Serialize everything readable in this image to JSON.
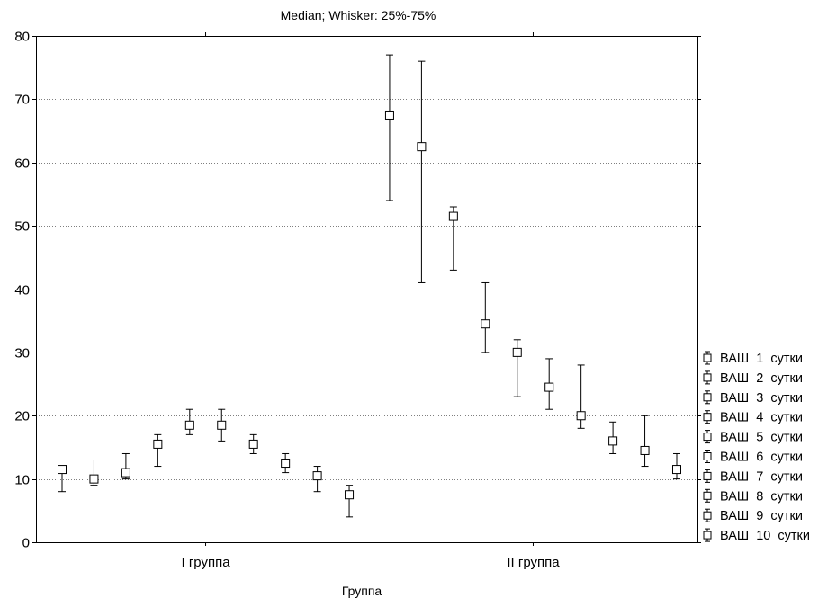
{
  "chart_data": {
    "type": "scatter",
    "title": "Median; Whisker: 25%-75%",
    "xlabel": "Группа",
    "ylabel": "",
    "ylim": [
      0,
      80
    ],
    "yticks": [
      0,
      10,
      20,
      30,
      40,
      50,
      60,
      70,
      80
    ],
    "grid": true,
    "legend_position": "right",
    "categories": [
      "I группа",
      "II группа"
    ],
    "series": [
      {
        "name": "ВАШ  1  сутки",
        "values": [
          {
            "median": 11.5,
            "q25": 8,
            "q75": 11.5
          },
          {
            "median": 67.5,
            "q25": 54,
            "q75": 77
          }
        ]
      },
      {
        "name": "ВАШ  2  сутки",
        "values": [
          {
            "median": 10,
            "q25": 9,
            "q75": 13
          },
          {
            "median": 62.5,
            "q25": 41,
            "q75": 76
          }
        ]
      },
      {
        "name": "ВАШ  3  сутки",
        "values": [
          {
            "median": 11,
            "q25": 10,
            "q75": 14
          },
          {
            "median": 51.5,
            "q25": 43,
            "q75": 53
          }
        ]
      },
      {
        "name": "ВАШ  4  сутки",
        "values": [
          {
            "median": 15.5,
            "q25": 12,
            "q75": 17
          },
          {
            "median": 34.5,
            "q25": 30,
            "q75": 41
          }
        ]
      },
      {
        "name": "ВАШ  5  сутки",
        "values": [
          {
            "median": 18.5,
            "q25": 17,
            "q75": 21
          },
          {
            "median": 30,
            "q25": 23,
            "q75": 32
          }
        ]
      },
      {
        "name": "ВАШ  6  сутки",
        "values": [
          {
            "median": 18.5,
            "q25": 16,
            "q75": 21
          },
          {
            "median": 24.5,
            "q25": 21,
            "q75": 29
          }
        ]
      },
      {
        "name": "ВАШ  7  сутки",
        "values": [
          {
            "median": 15.5,
            "q25": 14,
            "q75": 17
          },
          {
            "median": 20,
            "q25": 18,
            "q75": 28
          }
        ]
      },
      {
        "name": "ВАШ  8  сутки",
        "values": [
          {
            "median": 12.5,
            "q25": 11,
            "q75": 14
          },
          {
            "median": 16,
            "q25": 14,
            "q75": 19
          }
        ]
      },
      {
        "name": "ВАШ  9  сутки",
        "values": [
          {
            "median": 10.5,
            "q25": 8,
            "q75": 12
          },
          {
            "median": 14.5,
            "q25": 12,
            "q75": 20
          }
        ]
      },
      {
        "name": "ВАШ  10  сутки",
        "values": [
          {
            "median": 7.5,
            "q25": 4,
            "q75": 9
          },
          {
            "median": 11.5,
            "q25": 10,
            "q75": 14
          }
        ]
      }
    ]
  }
}
